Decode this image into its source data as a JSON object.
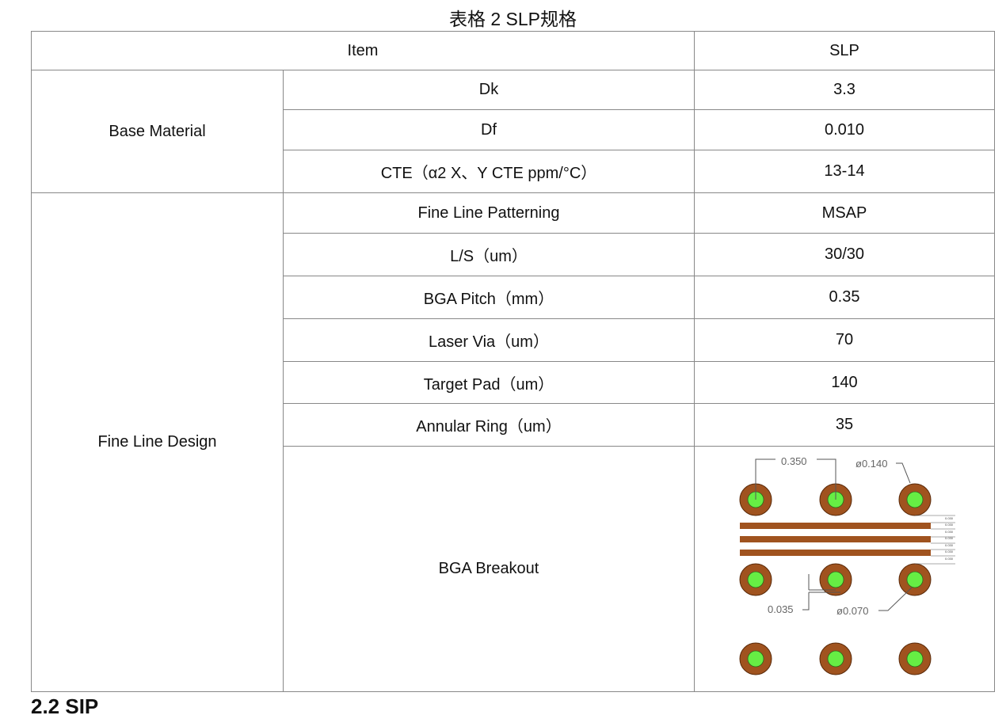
{
  "caption": "表格 2 SLP规格",
  "header": {
    "item": "Item",
    "slp": "SLP"
  },
  "groups": [
    {
      "name": "Base Material",
      "rows": [
        {
          "item": "Dk",
          "value": "3.3"
        },
        {
          "item": "Df",
          "value": "0.010"
        },
        {
          "item": "CTE（α2 X、Y CTE ppm/°C）",
          "value": "13-14"
        }
      ]
    },
    {
      "name": "Fine Line Design",
      "rows": [
        {
          "item": "Fine Line Patterning",
          "value": "MSAP"
        },
        {
          "item": "L/S（um）",
          "value": "30/30"
        },
        {
          "item": "BGA Pitch（mm）",
          "value": "0.35"
        },
        {
          "item": "Laser Via（um）",
          "value": "70"
        },
        {
          "item": "Target Pad（um）",
          "value": "140"
        },
        {
          "item": "Annular Ring（um）",
          "value": "35"
        },
        {
          "item": "BGA Breakout"
        }
      ]
    }
  ],
  "diagram": {
    "pitch": "0.350",
    "pad_dia": "ø0.140",
    "ring": "0.035",
    "via_dia": "ø0.070",
    "spacing": "0.030",
    "colors": {
      "pad": "#a0531f",
      "via": "#66ee44"
    }
  },
  "next_section": "2.2 SIP"
}
